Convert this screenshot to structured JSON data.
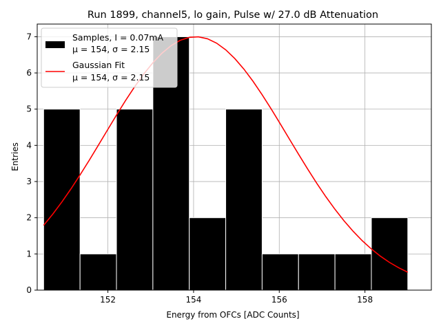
{
  "chart_data": {
    "type": "bar",
    "title": "Run 1899, channel5, lo gain, Pulse w/ 27.0 dB Attenuation",
    "xlabel": "Energy from OFCs [ADC Counts]",
    "ylabel": "Entries",
    "xlim": [
      150.35,
      159.55
    ],
    "ylim": [
      0,
      7.35
    ],
    "xticks": [
      152,
      154,
      156,
      158
    ],
    "yticks": [
      0,
      1,
      2,
      3,
      4,
      5,
      6,
      7
    ],
    "grid": true,
    "bin_edges": [
      150.5,
      151.35,
      152.2,
      153.05,
      153.9,
      154.75,
      155.6,
      156.45,
      157.3,
      158.15,
      159.0
    ],
    "values": [
      5,
      1,
      5,
      7,
      2,
      5,
      1,
      1,
      1,
      2
    ],
    "bar_color": "#000000",
    "fit": {
      "name": "Gaussian Fit",
      "color": "#ff0000",
      "mean": 154.05,
      "sigma": 2.15,
      "amplitude": 7.0,
      "x_range": [
        150.5,
        159.0
      ]
    },
    "legend": {
      "placement": "top-left",
      "entries": [
        {
          "line1": "Samples, I = 0.07mA",
          "line2": "μ = 154, σ = 2.15",
          "kind": "patch"
        },
        {
          "line1": "Gaussian Fit",
          "line2": "μ = 154, σ = 2.15",
          "kind": "line"
        }
      ]
    }
  }
}
